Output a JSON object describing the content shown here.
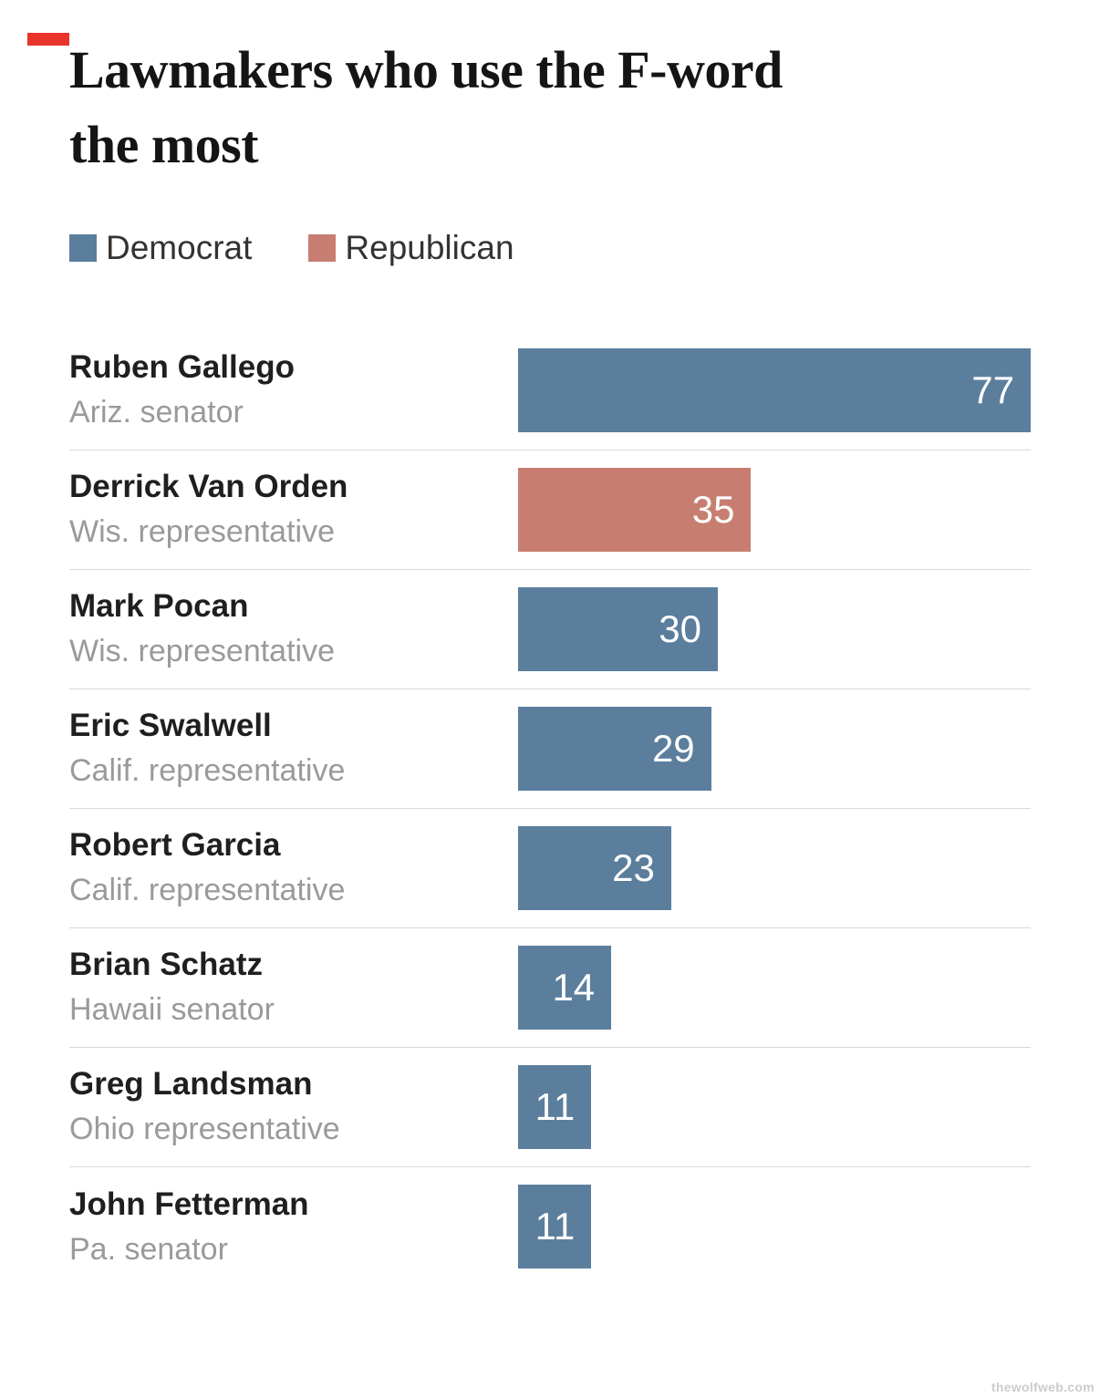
{
  "artifact": {
    "color": "#e9342b"
  },
  "chart_data": {
    "type": "bar",
    "orientation": "horizontal",
    "title": "Lawmakers who use the F-word the most",
    "title_lines": [
      "Lawmakers who use the F-word",
      "the most"
    ],
    "legend": [
      {
        "label": "Democrat",
        "key": "democrat"
      },
      {
        "label": "Republican",
        "key": "republican"
      }
    ],
    "colors": {
      "democrat": "#5b7e9d",
      "republican": "#c77e71"
    },
    "value_range": [
      0,
      77
    ],
    "max_value": 77,
    "bars": [
      {
        "name": "Ruben Gallego",
        "role": "Ariz. senator",
        "value": 77,
        "party": "democrat"
      },
      {
        "name": "Derrick Van Orden",
        "role": "Wis. representative",
        "value": 35,
        "party": "republican"
      },
      {
        "name": "Mark Pocan",
        "role": "Wis. representative",
        "value": 30,
        "party": "democrat"
      },
      {
        "name": "Eric Swalwell",
        "role": "Calif. representative",
        "value": 29,
        "party": "democrat"
      },
      {
        "name": "Robert Garcia",
        "role": "Calif. representative",
        "value": 23,
        "party": "democrat"
      },
      {
        "name": "Brian Schatz",
        "role": "Hawaii senator",
        "value": 14,
        "party": "democrat"
      },
      {
        "name": "Greg Landsman",
        "role": "Ohio representative",
        "value": 11,
        "party": "democrat"
      },
      {
        "name": "John Fetterman",
        "role": "Pa. senator",
        "value": 11,
        "party": "democrat"
      }
    ]
  },
  "watermark": "thewolfweb.com"
}
